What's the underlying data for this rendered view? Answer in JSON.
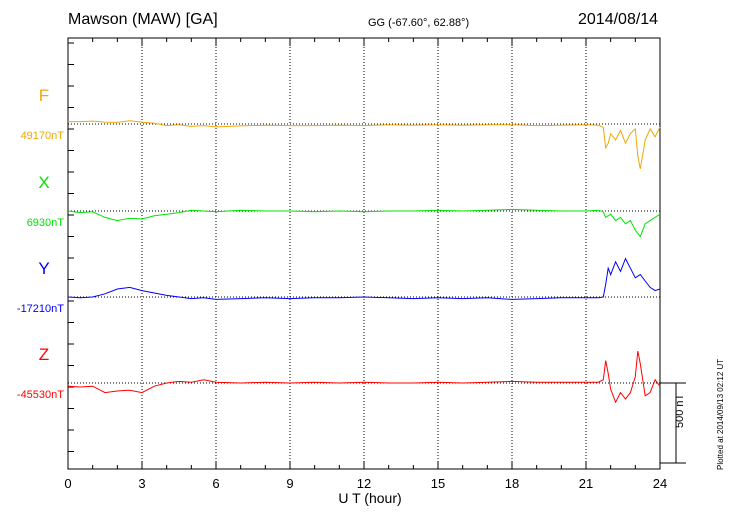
{
  "header": {
    "station": "Mawson (MAW)  [GA]",
    "coords": "GG (-67.60°,  62.88°)",
    "date": "2014/08/14"
  },
  "footer": {
    "plotted": "Plotted at 2014/09/13 02:12 UT"
  },
  "chart_data": {
    "type": "line",
    "title": "",
    "xlabel": "U T (hour)",
    "xlim": [
      0,
      24
    ],
    "xticks": [
      "0",
      "3",
      "6",
      "9",
      "12",
      "15",
      "18",
      "21",
      "24"
    ],
    "grid": "dotted vertical lines every 3 hours",
    "scale_bar": {
      "label": "500 nT",
      "value_nT": 500
    },
    "series": [
      {
        "name": "F",
        "baseline": "49170nT",
        "color": "#f0a800",
        "x": [
          0,
          0.5,
          1,
          1.5,
          2,
          2.5,
          3,
          3.5,
          4,
          4.5,
          5,
          5.5,
          6,
          7,
          8,
          9,
          10,
          11,
          12,
          13,
          14,
          15,
          16,
          17,
          18,
          19,
          20,
          21,
          21.5,
          21.7,
          21.8,
          21.9,
          22,
          22.2,
          22.4,
          22.6,
          22.8,
          23,
          23.1,
          23.2,
          23.4,
          23.6,
          23.8,
          24
        ],
        "y": [
          15,
          15,
          18,
          12,
          10,
          20,
          12,
          5,
          -10,
          -5,
          -15,
          -10,
          -18,
          -12,
          -8,
          -10,
          -10,
          -8,
          -10,
          -5,
          -8,
          -5,
          -8,
          -5,
          -5,
          -10,
          -8,
          -5,
          -8,
          -20,
          -150,
          -120,
          -60,
          -100,
          -40,
          -120,
          -60,
          -30,
          -200,
          -280,
          -100,
          -30,
          -80,
          -20
        ]
      },
      {
        "name": "X",
        "baseline": "6930nT",
        "color": "#00e600",
        "x": [
          0,
          0.5,
          1,
          1.5,
          2,
          2.5,
          3,
          3.5,
          4,
          4.5,
          5,
          5.5,
          6,
          7,
          8,
          9,
          10,
          11,
          12,
          13,
          14,
          15,
          16,
          17,
          18,
          19,
          20,
          21,
          21.5,
          21.7,
          21.8,
          22,
          22.2,
          22.4,
          22.6,
          22.8,
          23,
          23.2,
          23.4,
          23.6,
          24
        ],
        "y": [
          0,
          -10,
          -5,
          -40,
          -60,
          -45,
          -50,
          -30,
          -20,
          -10,
          5,
          0,
          -5,
          5,
          0,
          0,
          -5,
          0,
          -5,
          0,
          0,
          5,
          0,
          5,
          10,
          5,
          0,
          0,
          5,
          -5,
          -40,
          -20,
          -60,
          -40,
          -80,
          -60,
          -120,
          -160,
          -80,
          -60,
          -20
        ]
      },
      {
        "name": "Y",
        "baseline": "-17210nT",
        "color": "#0000ff",
        "x": [
          0,
          0.5,
          1,
          1.5,
          2,
          2.5,
          3,
          3.5,
          4,
          4.5,
          5,
          5.5,
          6,
          7,
          8,
          9,
          10,
          11,
          12,
          13,
          14,
          15,
          16,
          17,
          18,
          19,
          20,
          21,
          21.5,
          21.7,
          21.8,
          21.9,
          22,
          22.2,
          22.4,
          22.6,
          22.8,
          23,
          23.2,
          23.4,
          23.6,
          23.8,
          24
        ],
        "y": [
          0,
          -5,
          0,
          20,
          50,
          60,
          40,
          25,
          10,
          0,
          -10,
          -5,
          -15,
          -10,
          -5,
          -10,
          -5,
          -5,
          0,
          -5,
          -10,
          -5,
          -10,
          -5,
          -15,
          -10,
          -5,
          -5,
          -5,
          0,
          80,
          180,
          140,
          220,
          160,
          240,
          180,
          120,
          140,
          100,
          60,
          40,
          50
        ]
      },
      {
        "name": "Z",
        "baseline": "-45530nT",
        "color": "#ff0000",
        "x": [
          0,
          0.5,
          1,
          1.5,
          2,
          2.5,
          3,
          3.5,
          4,
          4.5,
          5,
          5.5,
          6,
          7,
          8,
          9,
          10,
          11,
          12,
          13,
          14,
          15,
          16,
          17,
          18,
          19,
          20,
          21,
          21.5,
          21.7,
          21.8,
          21.9,
          22,
          22.2,
          22.4,
          22.6,
          22.8,
          23,
          23.1,
          23.2,
          23.4,
          23.6,
          23.8,
          24
        ],
        "y": [
          -20,
          -25,
          -20,
          -60,
          -50,
          -45,
          -60,
          -20,
          0,
          10,
          5,
          20,
          5,
          0,
          5,
          0,
          5,
          0,
          5,
          0,
          0,
          5,
          0,
          5,
          10,
          5,
          5,
          5,
          5,
          20,
          140,
          60,
          -40,
          -120,
          -60,
          -100,
          -60,
          40,
          200,
          120,
          -80,
          -60,
          20,
          -20
        ]
      }
    ]
  }
}
